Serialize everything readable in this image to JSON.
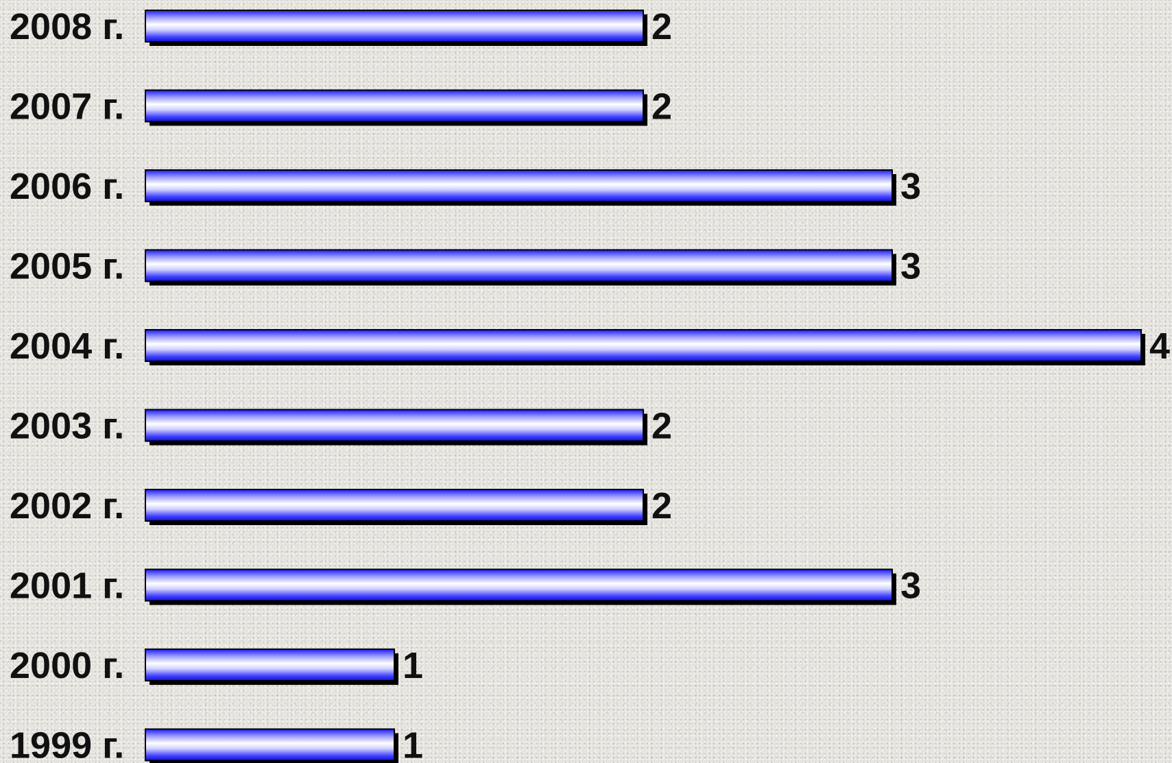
{
  "chart_data": {
    "type": "bar",
    "orientation": "horizontal",
    "categories": [
      "2008 г.",
      "2007 г.",
      "2006 г.",
      "2005 г.",
      "2004 г.",
      "2003 г.",
      "2002 г.",
      "2001 г.",
      "2000 г.",
      "1999 г."
    ],
    "values": [
      2,
      2,
      3,
      3,
      4,
      2,
      2,
      3,
      1,
      1
    ],
    "xlim": [
      0,
      4
    ],
    "grid": false,
    "data_labels": true
  },
  "colors": {
    "bar_edge": "#1a1aff",
    "bar_mid": "#ffffff",
    "bar_shadow": "#000000",
    "text": "#111111",
    "background": "#e4e2dc"
  }
}
